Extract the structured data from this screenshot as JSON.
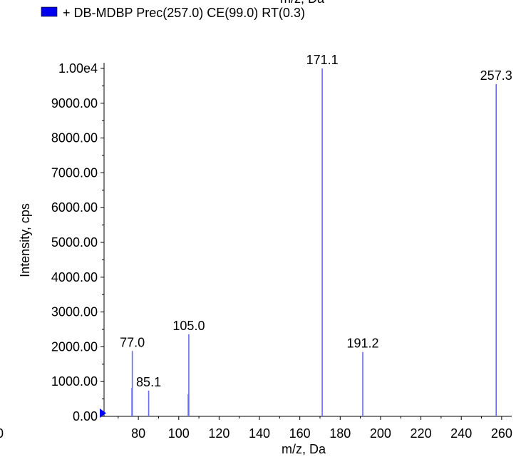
{
  "colors": {
    "series": "#6a6af2",
    "legend_swatch": "#0000ee",
    "marker": "#0000ff"
  },
  "header": {
    "clipped_text": "m/z, Da"
  },
  "legend": {
    "entries": [
      {
        "label": "+ DB-MDBP Prec(257.0) CE(99.0) RT(0.3)"
      }
    ]
  },
  "chart_data": {
    "type": "bar",
    "title": "",
    "xlabel": "m/z, Da",
    "ylabel": "Intensity, cps",
    "xlim": [
      63,
      265
    ],
    "ylim": [
      0,
      10000
    ],
    "x_ticks": [
      "80",
      "100",
      "120",
      "140",
      "160",
      "180",
      "200",
      "220",
      "240",
      "260"
    ],
    "x_tick_values": [
      80,
      100,
      120,
      140,
      160,
      180,
      200,
      220,
      240,
      260
    ],
    "x_cut_label": "0",
    "y_ticks": [
      "0.00",
      "1000.00",
      "2000.00",
      "3000.00",
      "4000.00",
      "5000.00",
      "6000.00",
      "7000.00",
      "8000.00",
      "9000.00",
      "1.00e4"
    ],
    "y_tick_values": [
      0,
      1000,
      2000,
      3000,
      4000,
      5000,
      6000,
      7000,
      8000,
      9000,
      10000
    ],
    "grid": false,
    "legend_position": "top",
    "series": [
      {
        "name": "+ DB-MDBP Prec(257.0) CE(99.0) RT(0.3)",
        "peaks": [
          {
            "x": 76.8,
            "y": 820
          },
          {
            "x": 77.0,
            "y": 1880,
            "label": "77.0"
          },
          {
            "x": 85.1,
            "y": 740,
            "label": "85.1"
          },
          {
            "x": 104.7,
            "y": 640
          },
          {
            "x": 105.0,
            "y": 2360,
            "label": "105.0"
          },
          {
            "x": 171.1,
            "y": 10000,
            "label": "171.1"
          },
          {
            "x": 191.2,
            "y": 1850,
            "label": "191.2"
          },
          {
            "x": 257.3,
            "y": 9550,
            "label": "257.3"
          }
        ]
      }
    ]
  }
}
